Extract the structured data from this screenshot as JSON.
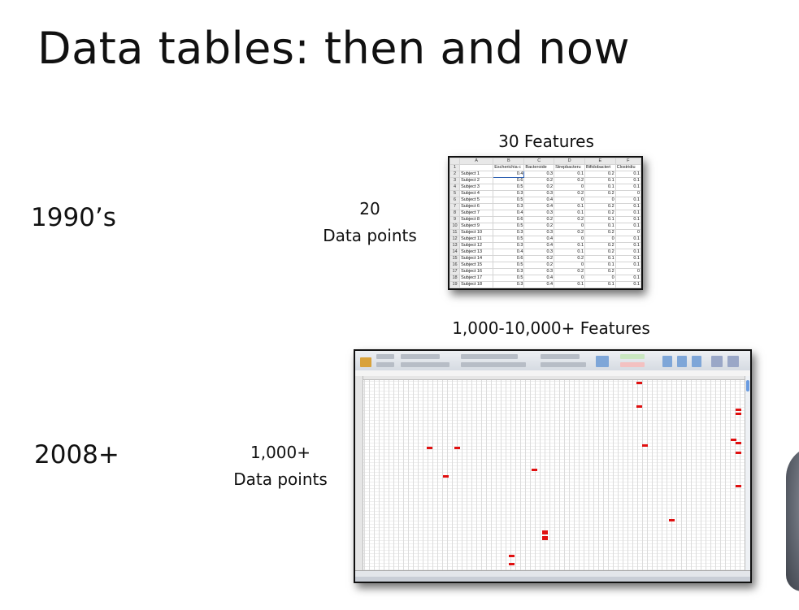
{
  "slide": {
    "title": "Data tables: then and now"
  },
  "then": {
    "era": "1990’s",
    "features_label": "30 Features",
    "rows_count": "20",
    "rows_label": "Data points",
    "sheet": {
      "columns": [
        "",
        "A",
        "B",
        "C",
        "D",
        "E",
        "F"
      ],
      "headers": [
        "Escherichia c",
        "Bacteroide",
        "Strepbacteru",
        "Bifidobacteri",
        "Clostridiu"
      ],
      "rows": [
        [
          "Subject 1",
          "0.4",
          "0.3",
          "0.1",
          "0.2",
          "0.1"
        ],
        [
          "Subject 2",
          "0.6",
          "0.2",
          "0.2",
          "0.1",
          "0.1"
        ],
        [
          "Subject 3",
          "0.5",
          "0.2",
          "0",
          "0.1",
          "0.1"
        ],
        [
          "Subject 4",
          "0.3",
          "0.3",
          "0.2",
          "0.2",
          "0"
        ],
        [
          "Subject 5",
          "0.5",
          "0.4",
          "0",
          "0",
          "0.1"
        ],
        [
          "Subject 6",
          "0.3",
          "0.4",
          "0.1",
          "0.2",
          "0.1"
        ],
        [
          "Subject 7",
          "0.4",
          "0.3",
          "0.1",
          "0.2",
          "0.1"
        ],
        [
          "Subject 8",
          "0.6",
          "0.2",
          "0.2",
          "0.1",
          "0.1"
        ],
        [
          "Subject 9",
          "0.5",
          "0.2",
          "0",
          "0.1",
          "0.1"
        ],
        [
          "Subject 10",
          "0.3",
          "0.3",
          "0.2",
          "0.2",
          "0"
        ],
        [
          "Subject 11",
          "0.5",
          "0.4",
          "0",
          "0",
          "0.1"
        ],
        [
          "Subject 12",
          "0.3",
          "0.4",
          "0.1",
          "0.2",
          "0.1"
        ],
        [
          "Subject 13",
          "0.4",
          "0.3",
          "0.1",
          "0.2",
          "0.1"
        ],
        [
          "Subject 14",
          "0.6",
          "0.2",
          "0.2",
          "0.1",
          "0.1"
        ],
        [
          "Subject 15",
          "0.5",
          "0.2",
          "0",
          "0.1",
          "0.1"
        ],
        [
          "Subject 16",
          "0.3",
          "0.3",
          "0.2",
          "0.2",
          "0"
        ],
        [
          "Subject 17",
          "0.5",
          "0.4",
          "0",
          "0",
          "0.1"
        ],
        [
          "Subject 18",
          "0.3",
          "0.4",
          "0.1",
          "0.1",
          "0.1"
        ]
      ]
    }
  },
  "now": {
    "era": "2008+",
    "features_label": "1,000-10,000+ Features",
    "rows_count": "1,000+",
    "rows_label": "Data points"
  },
  "colors": {
    "highlight_cell": "#e01010",
    "selection": "#2a5db0"
  }
}
